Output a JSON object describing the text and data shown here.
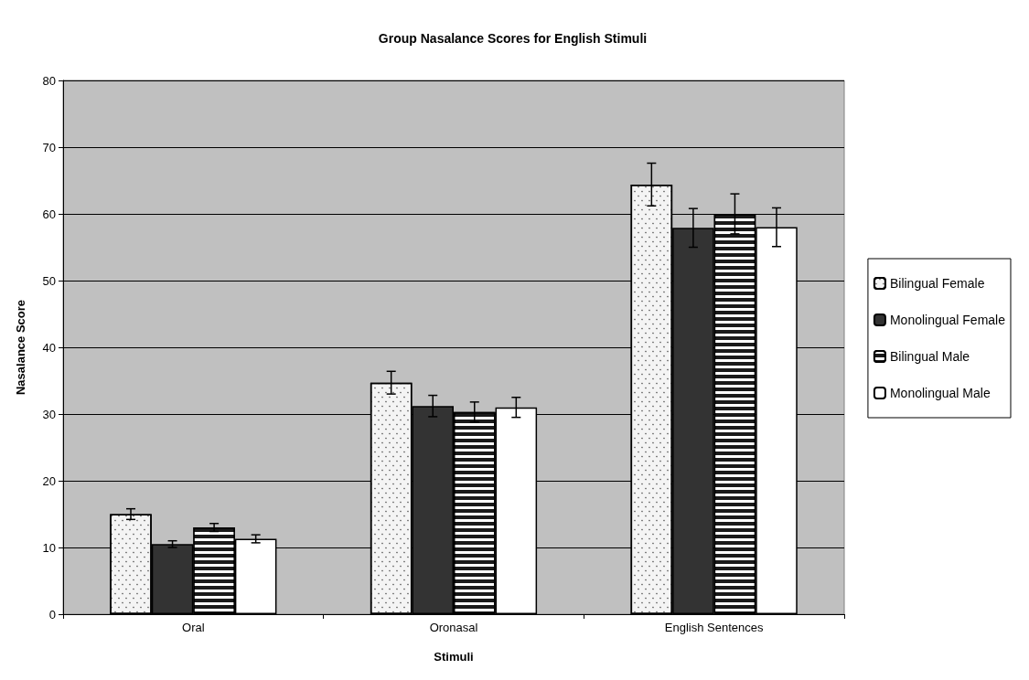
{
  "chart_data": {
    "type": "bar",
    "title": "Group Nasalance Scores for English Stimuli",
    "xlabel": "Stimuli",
    "ylabel": "Nasalance Score",
    "categories": [
      "Oral",
      "Oronasal",
      "English Sentences"
    ],
    "series": [
      {
        "name": "Bilingual Female",
        "color": "#f4f4f4",
        "values": [
          15.0,
          34.7,
          64.4
        ],
        "errors": [
          0.8,
          1.7,
          3.2
        ]
      },
      {
        "name": "Monolingual Female",
        "color": "#333333",
        "values": [
          10.5,
          31.2,
          57.9
        ],
        "errors": [
          0.5,
          1.6,
          2.9
        ]
      },
      {
        "name": "Bilingual Male",
        "color": "#1a1a1a",
        "values": [
          13.0,
          30.3,
          60.0
        ],
        "errors": [
          0.6,
          1.5,
          3.0
        ]
      },
      {
        "name": "Monolingual Male",
        "color": "#ffffff",
        "values": [
          11.3,
          31.0,
          58.0
        ],
        "errors": [
          0.6,
          1.5,
          2.9
        ]
      }
    ],
    "ylim": [
      0,
      80
    ],
    "yticks": [
      0,
      10,
      20,
      30,
      40,
      50,
      60,
      70,
      80
    ],
    "grid": "y",
    "legend": "right"
  }
}
